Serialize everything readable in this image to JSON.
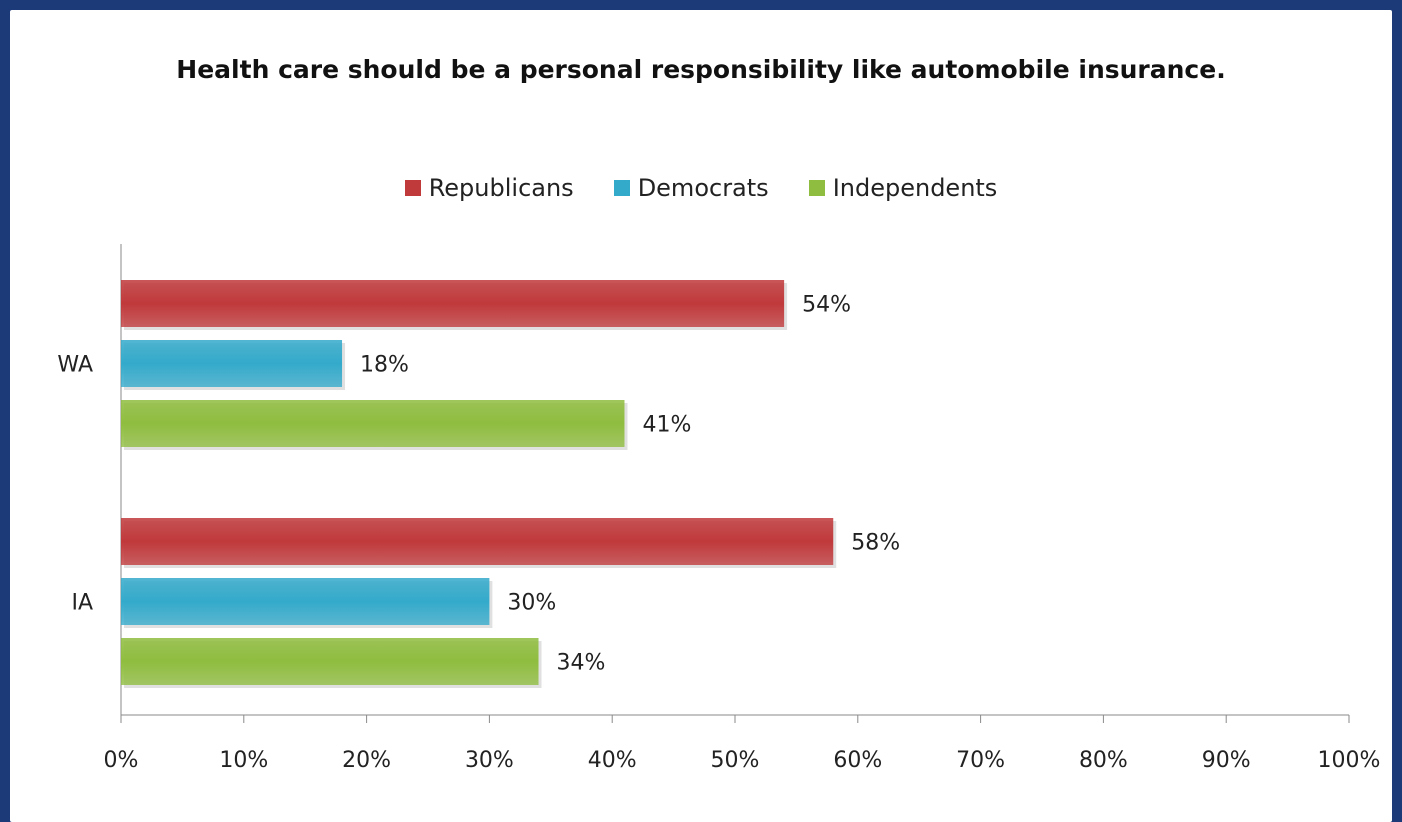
{
  "chart_data": {
    "type": "bar",
    "orientation": "horizontal",
    "title": "Health care should be a personal responsibility like automobile insurance.",
    "categories": [
      "WA",
      "IA"
    ],
    "series": [
      {
        "name": "Republicans",
        "color": "#c0393b",
        "values": [
          54,
          58
        ],
        "labels": [
          "54%",
          "58%"
        ]
      },
      {
        "name": "Democrats",
        "color": "#34aacb",
        "values": [
          18,
          30
        ],
        "labels": [
          "18%",
          "30%"
        ]
      },
      {
        "name": "Independents",
        "color": "#8fbd3f",
        "values": [
          41,
          34
        ],
        "labels": [
          "41%",
          "34%"
        ]
      }
    ],
    "xlim": [
      0,
      100
    ],
    "xticks": [
      "0%",
      "10%",
      "20%",
      "30%",
      "40%",
      "50%",
      "60%",
      "70%",
      "80%",
      "90%",
      "100%"
    ],
    "legend_position": "top",
    "grid": false
  }
}
